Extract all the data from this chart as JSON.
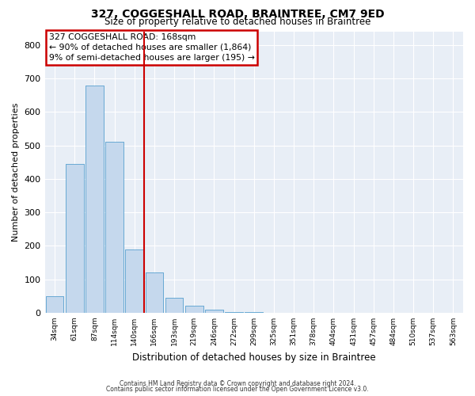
{
  "title": "327, COGGESHALL ROAD, BRAINTREE, CM7 9ED",
  "subtitle": "Size of property relative to detached houses in Braintree",
  "xlabel": "Distribution of detached houses by size in Braintree",
  "ylabel": "Number of detached properties",
  "footnote1": "Contains HM Land Registry data © Crown copyright and database right 2024.",
  "footnote2": "Contains public sector information licensed under the Open Government Licence v3.0.",
  "bar_color": "#c5d8ed",
  "bar_edge_color": "#6aaad4",
  "background_color": "#e8eef6",
  "grid_color": "#ffffff",
  "ann_line1": "327 COGGESHALL ROAD: 168sqm",
  "ann_line2": "← 90% of detached houses are smaller (1,864)",
  "ann_line3": "9% of semi-detached houses are larger (195) →",
  "vline_color": "#cc0000",
  "annotation_box_color": "#cc0000",
  "categories": [
    "34sqm",
    "61sqm",
    "87sqm",
    "114sqm",
    "140sqm",
    "166sqm",
    "193sqm",
    "219sqm",
    "246sqm",
    "272sqm",
    "299sqm",
    "325sqm",
    "351sqm",
    "378sqm",
    "404sqm",
    "431sqm",
    "457sqm",
    "484sqm",
    "510sqm",
    "537sqm",
    "563sqm"
  ],
  "values": [
    50,
    445,
    680,
    510,
    190,
    120,
    45,
    20,
    10,
    3,
    2,
    0,
    0,
    0,
    0,
    0,
    0,
    0,
    0,
    0,
    0
  ],
  "vline_pos": 4.5,
  "ylim": [
    0,
    840
  ],
  "yticks": [
    0,
    100,
    200,
    300,
    400,
    500,
    600,
    700,
    800
  ]
}
